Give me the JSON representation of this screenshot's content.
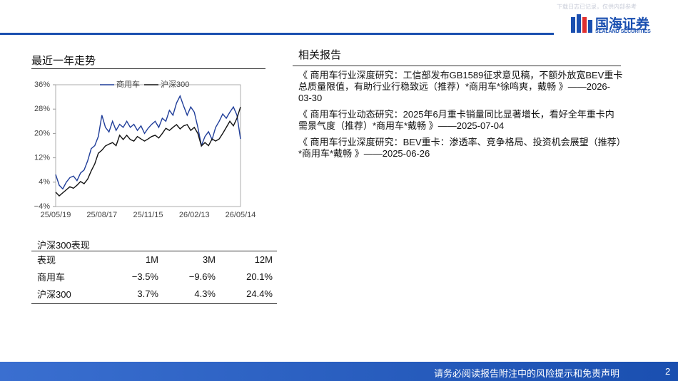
{
  "header": {
    "watermark": "下载日志已记录，仅供内部参考",
    "logo_cn": "国海证券",
    "logo_en": "SEALAND SECURITIES"
  },
  "trend_title": "最近一年走势",
  "chart_data": {
    "type": "line",
    "categories": [
      "25/05/19",
      null,
      null,
      null,
      null,
      null,
      null,
      null,
      null,
      null,
      null,
      null,
      null,
      "25/08/17",
      null,
      null,
      null,
      null,
      null,
      null,
      null,
      null,
      null,
      null,
      null,
      null,
      "25/11/15",
      null,
      null,
      null,
      null,
      null,
      null,
      null,
      null,
      null,
      null,
      null,
      null,
      "26/02/13",
      null,
      null,
      null,
      null,
      null,
      null,
      null,
      null,
      null,
      null,
      null,
      null,
      "26/05/14"
    ],
    "series": [
      {
        "name": "商用车",
        "color": "#1f3d99",
        "values": [
          6.5,
          3,
          1.8,
          4,
          5.5,
          6,
          4.5,
          7,
          8,
          11,
          15,
          16,
          19,
          26,
          22,
          20.5,
          24,
          21,
          23,
          22,
          24,
          22,
          23,
          21,
          22.5,
          20,
          21.7,
          23,
          24,
          22,
          25,
          24,
          27.6,
          26,
          30,
          32.3,
          29,
          26,
          28.7,
          27,
          22,
          16,
          19,
          20.6,
          18,
          22,
          24,
          26.4,
          25,
          27,
          28.7,
          26,
          18.2
        ]
      },
      {
        "name": "沪深300",
        "color": "#111111",
        "values": [
          0.7,
          -0.5,
          0.5,
          1.5,
          2.5,
          2,
          3,
          4.2,
          3.5,
          5,
          7.7,
          10,
          13.5,
          14.5,
          15.9,
          16.5,
          17,
          16,
          19.4,
          18,
          19.4,
          18,
          17.5,
          19,
          18.2,
          17.5,
          18.2,
          19,
          19.4,
          18.5,
          20,
          21.7,
          21,
          22,
          22.9,
          21.5,
          22.5,
          22.9,
          21,
          22,
          20,
          15.9,
          17,
          16,
          18.2,
          17.5,
          18.2,
          20,
          22,
          24,
          22.5,
          25,
          28.7
        ]
      }
    ],
    "ylim": [
      -4,
      36
    ],
    "yticks": [
      {
        "value": 36,
        "label": "36%"
      },
      {
        "value": 28,
        "label": "28%"
      },
      {
        "value": 20,
        "label": "20%"
      },
      {
        "value": 12,
        "label": "12%"
      },
      {
        "value": 4,
        "label": "4%"
      },
      {
        "value": -4,
        "label": "−4%"
      }
    ],
    "grid": false
  },
  "performance": {
    "title": "沪深300表现",
    "header": [
      "表现",
      "1M",
      "3M",
      "12M"
    ],
    "rows": [
      [
        "商用车",
        "−3.5%",
        "−9.6%",
        "20.1%"
      ],
      [
        "沪深300",
        "3.7%",
        "4.3%",
        "24.4%"
      ]
    ]
  },
  "reports": {
    "title": "相关报告",
    "items": [
      "《 商用车行业深度研究：工信部发布GB1589征求意见稿，不额外放宽BEV重卡总质量限值，有助行业行稳致远（推荐）*商用车*徐鸣爽，戴畅 》——2026-03-30",
      "《 商用车行业动态研究：2025年6月重卡销量同比显著增长，看好全年重卡内需景气度（推荐）*商用车*戴畅 》——2025-07-04",
      "《 商用车行业深度研究：BEV重卡：渗透率、竞争格局、投资机会展望（推荐）*商用车*戴畅 》——2025-06-26"
    ]
  },
  "footer": {
    "disclaimer": "请务必阅读报告附注中的风险提示和免责声明",
    "page": "2"
  }
}
